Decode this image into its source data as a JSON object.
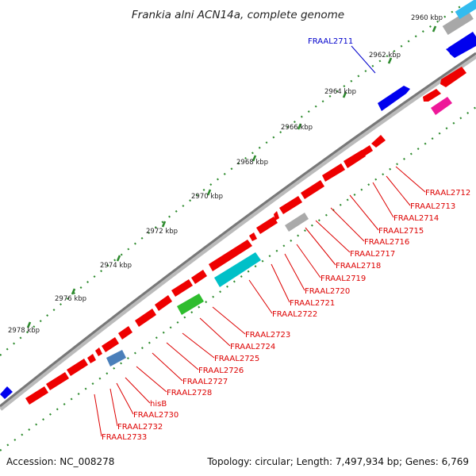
{
  "title": "Frankia alni ACN14a, complete genome",
  "footer": {
    "accession": "Accession: NC_008278",
    "summary": "Topology: circular; Length: 7,497,934 bp; Genes: 6,769"
  },
  "ticks": [
    "2960 kbp",
    "2962 kbp",
    "2964 kbp",
    "2966 kbp",
    "2968 kbp",
    "2970 kbp",
    "2972 kbp",
    "2974 kbp",
    "2976 kbp",
    "2978 kbp"
  ],
  "outer_label": "FRAAL2711",
  "gene_labels": [
    "FRAAL2712",
    "FRAAL2713",
    "FRAAL2714",
    "FRAAL2715",
    "FRAAL2716",
    "FRAAL2717",
    "FRAAL2718",
    "FRAAL2719",
    "FRAAL2720",
    "FRAAL2721",
    "FRAAL2722",
    "FRAAL2723",
    "FRAAL2724",
    "FRAAL2725",
    "FRAAL2726",
    "FRAAL2727",
    "FRAAL2728",
    "hisB",
    "FRAAL2730",
    "FRAAL2732",
    "FRAAL2733"
  ],
  "colors": {
    "forward_gene": "#0000ee",
    "reverse_gene": "#ee0000",
    "backbone": "#888888",
    "tick_mark": "#2e8b2e",
    "label_blue": "#0000cc",
    "label_red": "#dd0000"
  }
}
